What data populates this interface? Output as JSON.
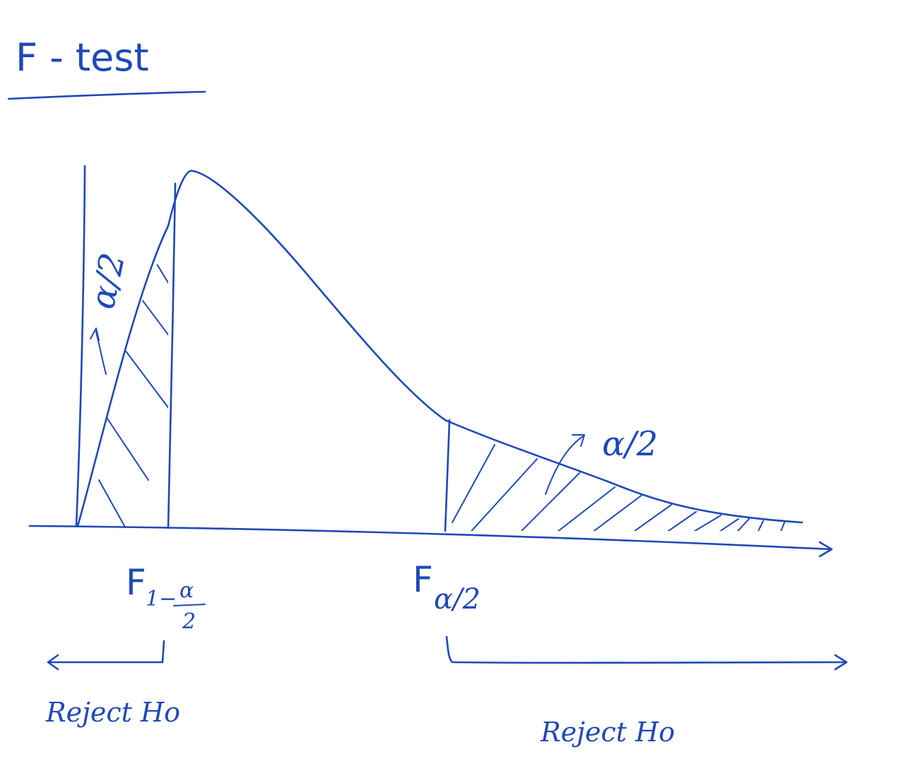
{
  "title": "F - test",
  "area_label_left": "α/2",
  "area_label_right": "α/2",
  "critical_left": {
    "symbol": "F",
    "subscript": "1−",
    "sub_frac_num": "α",
    "sub_frac_den": "2"
  },
  "critical_right": {
    "symbol": "F",
    "subscript": "α/2"
  },
  "reject_left": "Reject Ho",
  "reject_right": "Reject Ho",
  "colors": {
    "ink": "#1f49b8",
    "paper": "#ffffff"
  }
}
